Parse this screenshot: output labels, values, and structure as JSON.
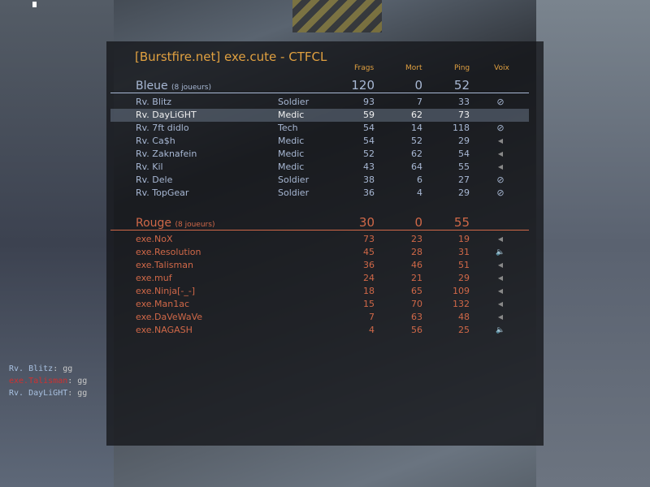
{
  "title": "[Burstfire.net] exe.cute - CTFCL",
  "columns": {
    "frags": "Frags",
    "mort": "Mort",
    "ping": "Ping",
    "voix": "Voix"
  },
  "colors": {
    "title": "#e0a040",
    "blue": "#a8b8d4",
    "red": "#d06848"
  },
  "blue": {
    "name": "Bleue",
    "count": "(8 joueurs)",
    "frags": "120",
    "mort": "0",
    "ping": "52",
    "players": [
      {
        "name": "Rv. Blitz",
        "class": "Soldier",
        "frags": "93",
        "mort": "7",
        "ping": "33",
        "voice": "muted-icon"
      },
      {
        "name": "Rv. DayLiGHT",
        "class": "Medic",
        "frags": "59",
        "mort": "62",
        "ping": "73",
        "voice": "",
        "highlighted": true
      },
      {
        "name": "Rv. 7ft didlo",
        "class": "Tech",
        "frags": "54",
        "mort": "14",
        "ping": "118",
        "voice": "muted-icon"
      },
      {
        "name": "Rv. Ca$h",
        "class": "Medic",
        "frags": "54",
        "mort": "52",
        "ping": "29",
        "voice": "speaker-icon"
      },
      {
        "name": "Rv. Zaknafein",
        "class": "Medic",
        "frags": "52",
        "mort": "62",
        "ping": "54",
        "voice": "speaker-icon"
      },
      {
        "name": "Rv. Kil",
        "class": "Medic",
        "frags": "43",
        "mort": "64",
        "ping": "55",
        "voice": "speaker-icon"
      },
      {
        "name": "Rv. Dele",
        "class": "Soldier",
        "frags": "38",
        "mort": "6",
        "ping": "27",
        "voice": "muted-icon"
      },
      {
        "name": "Rv. TopGear",
        "class": "Soldier",
        "frags": "36",
        "mort": "4",
        "ping": "29",
        "voice": "muted-icon"
      }
    ]
  },
  "red": {
    "name": "Rouge",
    "count": "(8 joueurs)",
    "frags": "30",
    "mort": "0",
    "ping": "55",
    "players": [
      {
        "name": "exe.NoX",
        "frags": "73",
        "mort": "23",
        "ping": "19",
        "voice": "speaker-icon"
      },
      {
        "name": "exe.Resolution",
        "frags": "45",
        "mort": "28",
        "ping": "31",
        "voice": "speaking-icon"
      },
      {
        "name": "exe.Talisman",
        "frags": "36",
        "mort": "46",
        "ping": "51",
        "voice": "speaker-icon"
      },
      {
        "name": "exe.muf",
        "frags": "24",
        "mort": "21",
        "ping": "29",
        "voice": "speaker-icon"
      },
      {
        "name": "exe.Ninja[-_-]",
        "frags": "18",
        "mort": "65",
        "ping": "109",
        "voice": "speaker-icon"
      },
      {
        "name": "exe.Man1ac",
        "frags": "15",
        "mort": "70",
        "ping": "132",
        "voice": "speaker-icon"
      },
      {
        "name": "exe.DaVeWaVe",
        "frags": "7",
        "mort": "63",
        "ping": "48",
        "voice": "speaker-icon"
      },
      {
        "name": "exe.NAGASH",
        "frags": "4",
        "mort": "56",
        "ping": "25",
        "voice": "speaking-icon"
      }
    ]
  },
  "chat": [
    {
      "name": "Rv. Blitz",
      "text": ": gg",
      "team": "blue"
    },
    {
      "name": "exe.Talisman",
      "text": ": gg",
      "team": "red"
    },
    {
      "name": "Rv. DayLiGHT",
      "text": ": gg",
      "team": "blue"
    }
  ]
}
